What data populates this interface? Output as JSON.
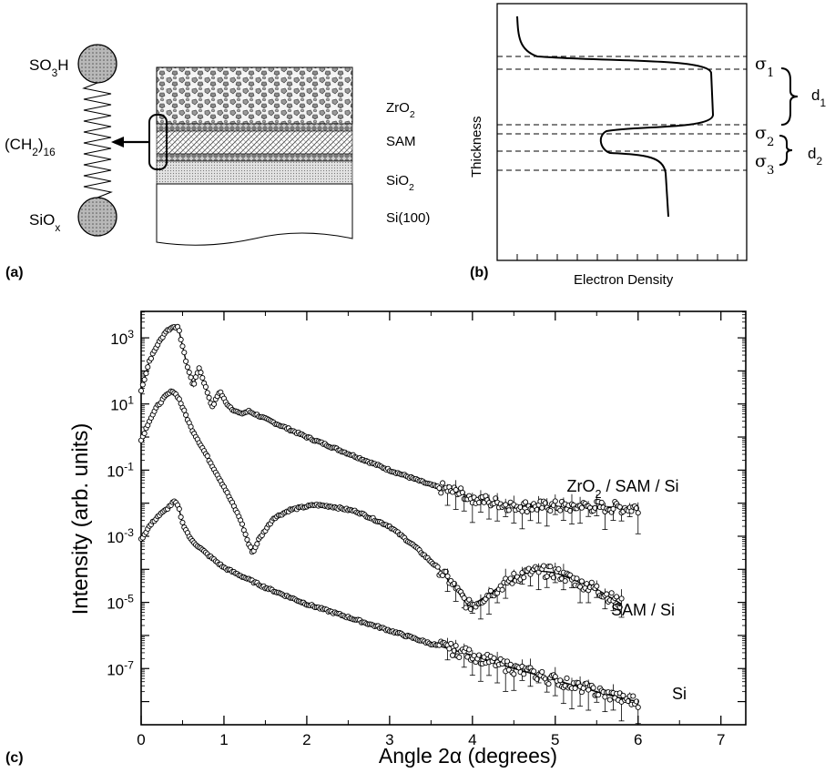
{
  "panels": {
    "a": {
      "label": "(a)",
      "molecule": {
        "top_group": "SO3H",
        "chain": "(CH2)16",
        "bottom_group": "SiOx"
      },
      "layers": [
        "ZrO2",
        "SAM",
        "SiO2",
        "Si(100)"
      ]
    },
    "b": {
      "label": "(b)",
      "ylabel": "Thickness",
      "xlabel": "Electron Density",
      "roughness_labels": [
        "σ1",
        "σ2",
        "σ3"
      ],
      "thickness_labels": [
        "d1",
        "d2"
      ]
    },
    "c": {
      "label": "(c)"
    }
  },
  "chart_data": {
    "type": "scatter",
    "xlabel": "Angle 2α (degrees)",
    "ylabel": "Intensity (arb. units)",
    "xlim": [
      0,
      7.3
    ],
    "ylim_log10": [
      -8.7,
      3.8
    ],
    "yscale": "log",
    "x_ticks": [
      0,
      1,
      2,
      3,
      4,
      5,
      6,
      7
    ],
    "y_ticks": [
      {
        "base": "10",
        "exp": "3"
      },
      {
        "base": "10",
        "exp": "1"
      },
      {
        "base": "10",
        "exp": "-1"
      },
      {
        "base": "10",
        "exp": "-3"
      },
      {
        "base": "10",
        "exp": "-5"
      },
      {
        "base": "10",
        "exp": "-7"
      }
    ],
    "series": [
      {
        "name": "ZrO2 / SAM / Si",
        "x": [
          0.0,
          0.1,
          0.2,
          0.3,
          0.4,
          0.45,
          0.55,
          0.63,
          0.7,
          0.8,
          0.86,
          0.95,
          1.02,
          1.1,
          1.2,
          1.3,
          1.5,
          2.0,
          2.5,
          3.0,
          3.5,
          3.9,
          4.2,
          4.4,
          4.7,
          5.0,
          5.5,
          6.0
        ],
        "log10_y": [
          1.4,
          2.3,
          2.8,
          3.2,
          3.35,
          3.3,
          2.2,
          1.55,
          2.1,
          1.35,
          0.9,
          1.4,
          1.05,
          0.85,
          0.7,
          0.78,
          0.55,
          0.0,
          -0.5,
          -1.0,
          -1.45,
          -1.75,
          -1.95,
          -2.05,
          -2.1,
          -2.1,
          -2.1,
          -2.15
        ]
      },
      {
        "name": "SAM / Si",
        "x": [
          0.0,
          0.1,
          0.2,
          0.3,
          0.38,
          0.45,
          0.6,
          0.8,
          1.0,
          1.2,
          1.3,
          1.35,
          1.42,
          1.6,
          1.8,
          2.0,
          2.1,
          2.3,
          2.6,
          3.0,
          3.3,
          3.6,
          3.8,
          3.95,
          4.05,
          4.2,
          4.4,
          4.6,
          4.8,
          5.0,
          5.2,
          5.5,
          5.8
        ],
        "log10_y": [
          -0.1,
          0.5,
          0.95,
          1.25,
          1.4,
          1.2,
          0.3,
          -0.6,
          -1.5,
          -2.5,
          -3.25,
          -3.5,
          -3.1,
          -2.45,
          -2.2,
          -2.1,
          -2.05,
          -2.1,
          -2.25,
          -2.7,
          -3.3,
          -4.0,
          -4.6,
          -5.1,
          -5.0,
          -4.75,
          -4.4,
          -4.15,
          -4.05,
          -4.1,
          -4.3,
          -4.6,
          -5.05
        ]
      },
      {
        "name": "Si",
        "x": [
          0.0,
          0.1,
          0.2,
          0.3,
          0.4,
          0.45,
          0.5,
          0.6,
          0.8,
          1.0,
          1.5,
          2.0,
          2.5,
          3.0,
          3.5,
          4.0,
          4.5,
          5.0,
          5.5,
          5.8,
          6.0
        ],
        "log10_y": [
          -3.1,
          -2.7,
          -2.4,
          -2.2,
          -1.95,
          -2.1,
          -2.6,
          -3.1,
          -3.55,
          -3.95,
          -4.55,
          -5.05,
          -5.45,
          -5.85,
          -6.25,
          -6.6,
          -7.0,
          -7.35,
          -7.7,
          -7.9,
          -8.0
        ]
      }
    ]
  }
}
